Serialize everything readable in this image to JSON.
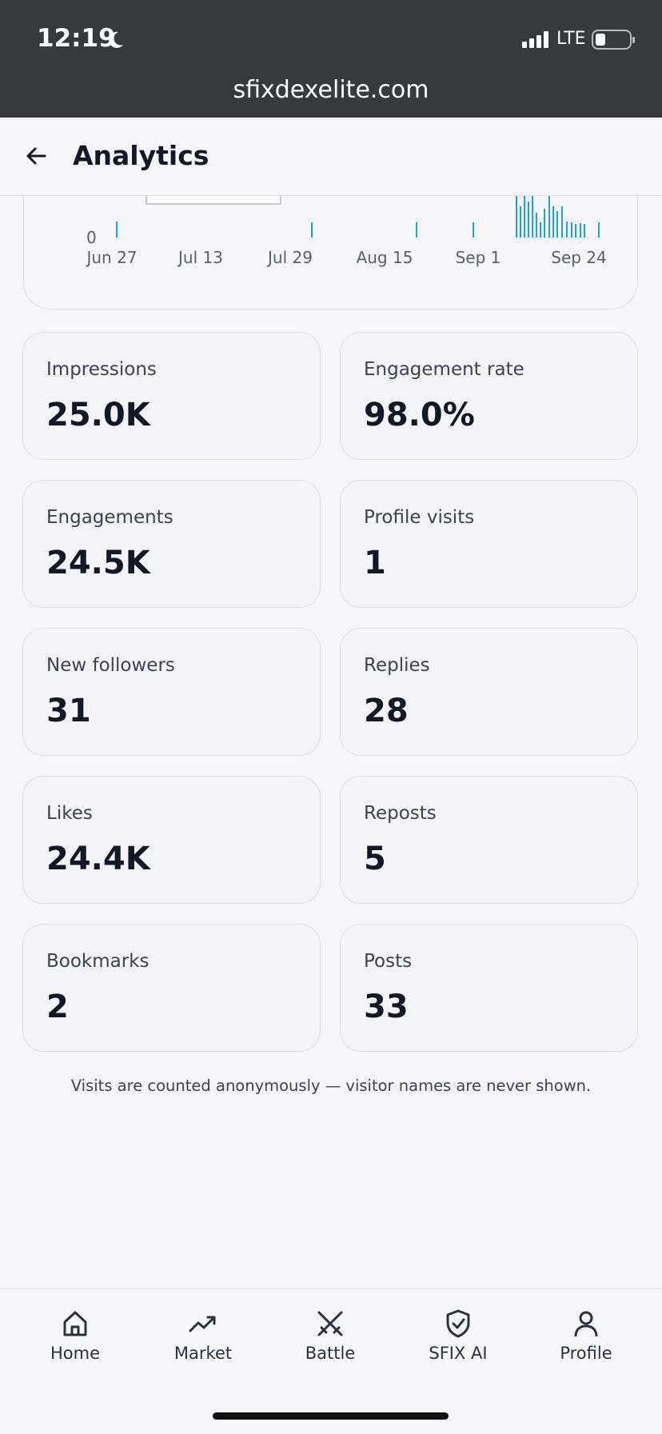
{
  "status_bar": {
    "time": "12:19",
    "network": "LTE"
  },
  "url": "sfixdexelite.com",
  "header": {
    "title": "Analytics"
  },
  "chart": {
    "y_label": "0",
    "x_labels": [
      "Jun 27",
      "Jul 13",
      "Jul 29",
      "Aug 15",
      "Sep 1",
      "Sep 24"
    ]
  },
  "stats": [
    {
      "label": "Impressions",
      "value": "25.0K"
    },
    {
      "label": "Engagement rate",
      "value": "98.0%"
    },
    {
      "label": "Engagements",
      "value": "24.5K"
    },
    {
      "label": "Profile visits",
      "value": "1"
    },
    {
      "label": "New followers",
      "value": "31"
    },
    {
      "label": "Replies",
      "value": "28"
    },
    {
      "label": "Likes",
      "value": "24.4K"
    },
    {
      "label": "Reposts",
      "value": "5"
    },
    {
      "label": "Bookmarks",
      "value": "2"
    },
    {
      "label": "Posts",
      "value": "33"
    }
  ],
  "note": "Visits are counted anonymously — visitor names are never shown.",
  "nav": [
    "Home",
    "Market",
    "Battle",
    "SFIX AI",
    "Profile"
  ]
}
